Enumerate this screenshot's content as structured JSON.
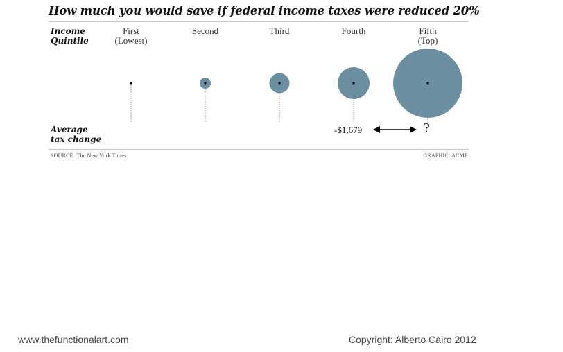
{
  "chart_data": {
    "type": "bubble",
    "title": "How much you would save if federal income taxes were reduced 20%",
    "row_label_top": [
      "Income",
      "Quintile"
    ],
    "row_label_bottom": [
      "Average",
      "tax change"
    ],
    "categories": [
      [
        "First",
        "(Lowest)"
      ],
      [
        "Second"
      ],
      [
        "Third"
      ],
      [
        "Fourth"
      ],
      [
        "Fifth",
        "(Top)"
      ]
    ],
    "relative_size": [
      0,
      0.16,
      0.29,
      0.46,
      1.0
    ],
    "value_labels": [
      "",
      "",
      "",
      "-$1,679",
      "?"
    ],
    "source": "SOURCE: The New York Times",
    "credit": "GRAPHIC: ACME",
    "bubble_color": "#6b8fa0"
  },
  "footer": {
    "url": "www.thefunctionalart.com",
    "copyright": "Copyright: Alberto Cairo 2012"
  }
}
